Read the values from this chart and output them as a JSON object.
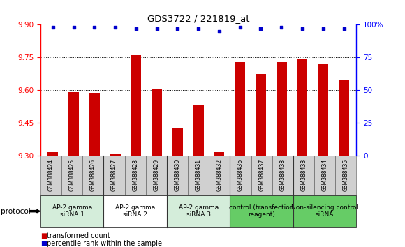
{
  "title": "GDS3722 / 221819_at",
  "samples": [
    "GSM388424",
    "GSM388425",
    "GSM388426",
    "GSM388427",
    "GSM388428",
    "GSM388429",
    "GSM388430",
    "GSM388431",
    "GSM388432",
    "GSM388436",
    "GSM388437",
    "GSM388438",
    "GSM388433",
    "GSM388434",
    "GSM388435"
  ],
  "transformed_count": [
    9.315,
    9.592,
    9.585,
    9.308,
    9.762,
    9.603,
    9.425,
    9.53,
    9.317,
    9.73,
    9.675,
    9.73,
    9.74,
    9.72,
    9.645
  ],
  "percentile_rank": [
    98,
    98,
    98,
    98,
    97,
    97,
    97,
    97,
    95,
    98,
    97,
    98,
    97,
    97,
    97
  ],
  "ylim_left": [
    9.3,
    9.9
  ],
  "ylim_right": [
    0,
    100
  ],
  "yticks_left": [
    9.3,
    9.45,
    9.6,
    9.75,
    9.9
  ],
  "yticks_right": [
    0,
    25,
    50,
    75,
    100
  ],
  "ytick_labels_right": [
    "0",
    "25",
    "50",
    "75",
    "100%"
  ],
  "groups": [
    {
      "label": "AP-2 gamma\nsiRNA 1",
      "start": 0,
      "end": 3,
      "color": "#d4edda"
    },
    {
      "label": "AP-2 gamma\nsiRNA 2",
      "start": 3,
      "end": 6,
      "color": "#ffffff"
    },
    {
      "label": "AP-2 gamma\nsiRNA 3",
      "start": 6,
      "end": 9,
      "color": "#d4edda"
    },
    {
      "label": "control (transfection\nreagent)",
      "start": 9,
      "end": 12,
      "color": "#66cc66"
    },
    {
      "label": "Non-silencing control\nsiRNA",
      "start": 12,
      "end": 15,
      "color": "#66cc66"
    }
  ],
  "bar_color": "#cc0000",
  "dot_color": "#0000cc",
  "bar_width": 0.5,
  "protocol_label": "protocol",
  "legend_items": [
    {
      "color": "#cc0000",
      "label": "transformed count"
    },
    {
      "color": "#0000cc",
      "label": "percentile rank within the sample"
    }
  ],
  "grid_color": "black",
  "grid_style": "dotted",
  "sample_box_color": "#d0d0d0",
  "group_border_color": "#333333"
}
